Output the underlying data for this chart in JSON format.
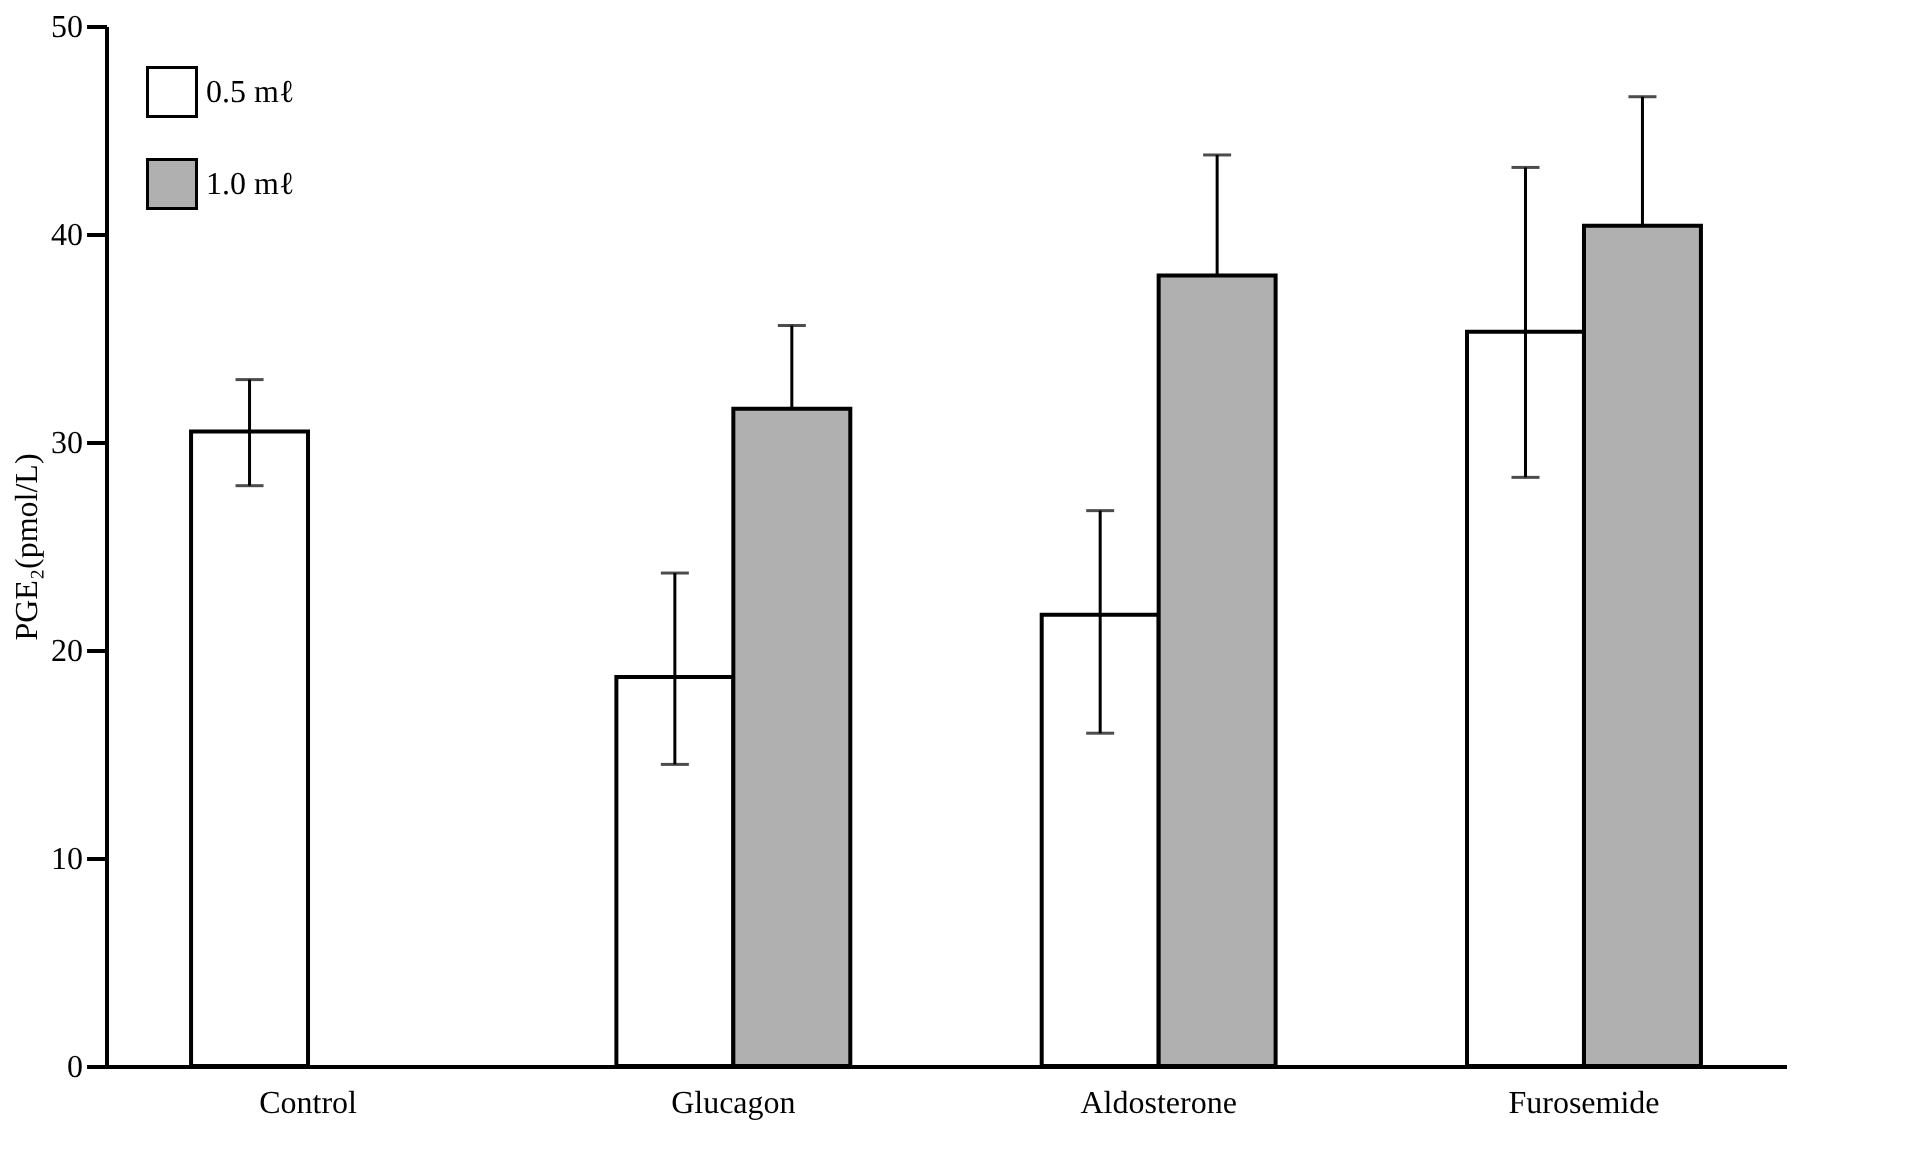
{
  "chart_data": {
    "type": "bar",
    "ylabel": "PGE₂(pmol/L)",
    "categories": [
      "Control",
      "Glucagon",
      "Aldosterone",
      "Furosemide"
    ],
    "series": [
      {
        "name": "0.5 mℓ",
        "color": "#ffffff",
        "values": [
          30.5,
          18.7,
          21.7,
          35.3
        ],
        "errors": [
          [
            27.9,
            33.0
          ],
          [
            14.5,
            23.7
          ],
          [
            16.0,
            26.7
          ],
          [
            28.3,
            43.2
          ]
        ]
      },
      {
        "name": "1.0 mℓ",
        "color": "#b0b0b0",
        "values": [
          null,
          31.6,
          38.0,
          40.4
        ],
        "errors": [
          null,
          [
            31.6,
            35.6
          ],
          [
            38.0,
            43.8
          ],
          [
            40.4,
            46.6
          ]
        ]
      }
    ],
    "ylim": [
      0,
      50
    ],
    "yticks": [
      0,
      10,
      20,
      30,
      40,
      50
    ],
    "grid": false,
    "legend": "top left"
  }
}
